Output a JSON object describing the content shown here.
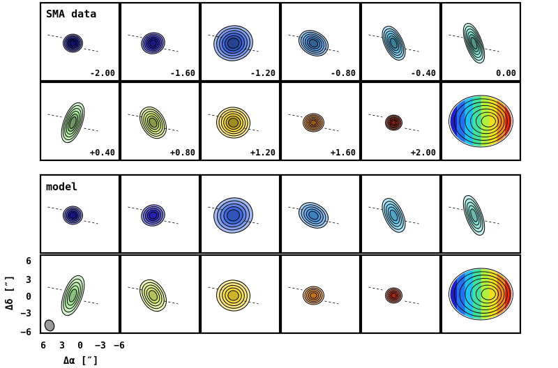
{
  "chart_data": [
    {
      "type": "contour",
      "panel_label": "SMA data",
      "velocity_channels": [
        "-2.00",
        "-1.60",
        "-1.20",
        "-0.80",
        "-0.40",
        "0.00",
        "+0.40",
        "+0.80",
        "+1.20",
        "+1.60",
        "+2.00"
      ],
      "final_panel": "velocity-colored moment map",
      "x_axis_ticks": [
        "6",
        "3",
        "0",
        "−3",
        "−6"
      ],
      "y_axis_ticks": [
        "6",
        "3",
        "0",
        "−3",
        "−6"
      ],
      "x_axis_label": "Δα [″]",
      "y_axis_label": "Δδ [″]",
      "xlim": [
        6,
        -6
      ],
      "ylim": [
        -6,
        6
      ]
    },
    {
      "type": "contour",
      "panel_label": "model",
      "velocity_channels": [
        "-2.00",
        "-1.60",
        "-1.20",
        "-0.80",
        "-0.40",
        "0.00",
        "+0.40",
        "+0.80",
        "+1.20",
        "+1.60",
        "+2.00"
      ],
      "final_panel": "velocity-colored moment map",
      "show_channel_labels": false,
      "beam_marker": "gray-ellipse"
    }
  ],
  "labels": {
    "data_title": "SMA data",
    "model_title": "model",
    "x_axis": "Δα [″]",
    "y_axis": "Δδ [″]",
    "x_ticks": [
      "6",
      "3",
      "0",
      "−3",
      "−6"
    ],
    "y_ticks": [
      "6",
      "3",
      "0",
      "−3",
      "−6"
    ]
  },
  "colors": {
    "channel_fill": [
      "#1a1aa8",
      "#2a2ad0",
      "#3a66e0",
      "#4a9ae6",
      "#5cc4ea",
      "#7ee0d0",
      "#a8e898",
      "#d8e870",
      "#f8d830",
      "#e88a20",
      "#c83018"
    ],
    "contour": "#000000",
    "beam": "#9a9a9a",
    "frame": "#000000"
  },
  "icons": [
    "beam-ellipse-icon"
  ]
}
